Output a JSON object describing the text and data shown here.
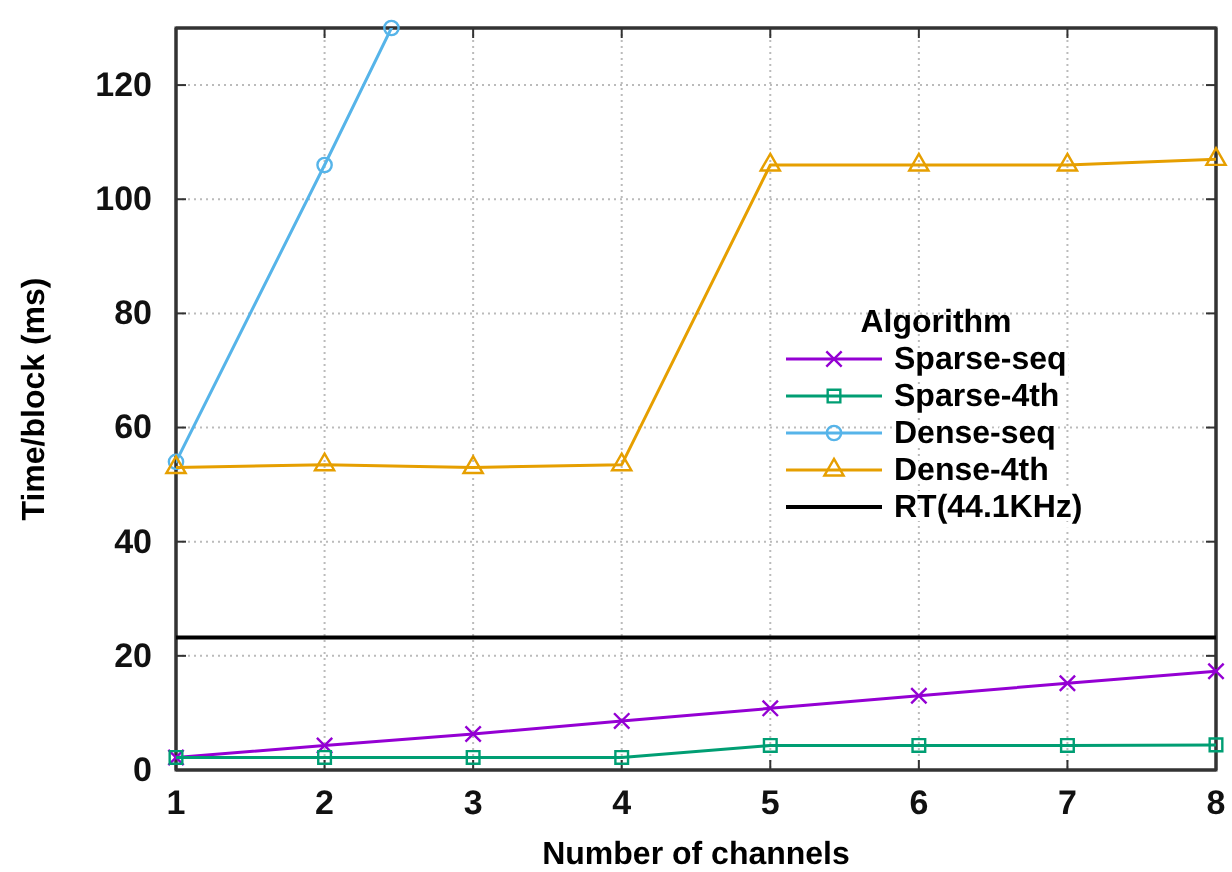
{
  "chart_data": {
    "type": "line",
    "xlabel": "Number of channels",
    "ylabel": "Time/block (ms)",
    "legend_title": "Algorithm",
    "x": [
      1,
      2,
      3,
      4,
      5,
      6,
      7,
      8
    ],
    "xlim": [
      1,
      8
    ],
    "xticks": [
      1,
      2,
      3,
      4,
      5,
      6,
      7,
      8
    ],
    "ylim": [
      0,
      130
    ],
    "yticks": [
      0,
      20,
      40,
      60,
      80,
      100,
      120
    ],
    "grid": true,
    "legend": "right",
    "line_style": "solid",
    "series": [
      {
        "name": "Sparse-seq",
        "color": "#9400d3",
        "marker": "cross",
        "values": [
          2.2,
          4.3,
          6.3,
          8.6,
          10.8,
          13,
          15.2,
          17.3
        ]
      },
      {
        "name": "Sparse-4th",
        "color": "#009e73",
        "marker": "square",
        "values": [
          2.2,
          2.2,
          2.2,
          2.2,
          4.3,
          4.3,
          4.3,
          4.4
        ]
      },
      {
        "name": "Dense-seq",
        "color": "#56b4e9",
        "marker": "circle",
        "x": [
          1,
          2,
          2.45
        ],
        "values": [
          54,
          106,
          130
        ]
      },
      {
        "name": "Dense-4th",
        "color": "#e69f00",
        "marker": "triangle",
        "values": [
          53,
          53.5,
          53,
          53.5,
          106,
          106,
          106,
          107
        ]
      }
    ],
    "ref_lines": [
      {
        "axis": "y",
        "value": 23.2,
        "label": "RT(44.1KHz)",
        "color": "#000000"
      }
    ]
  }
}
